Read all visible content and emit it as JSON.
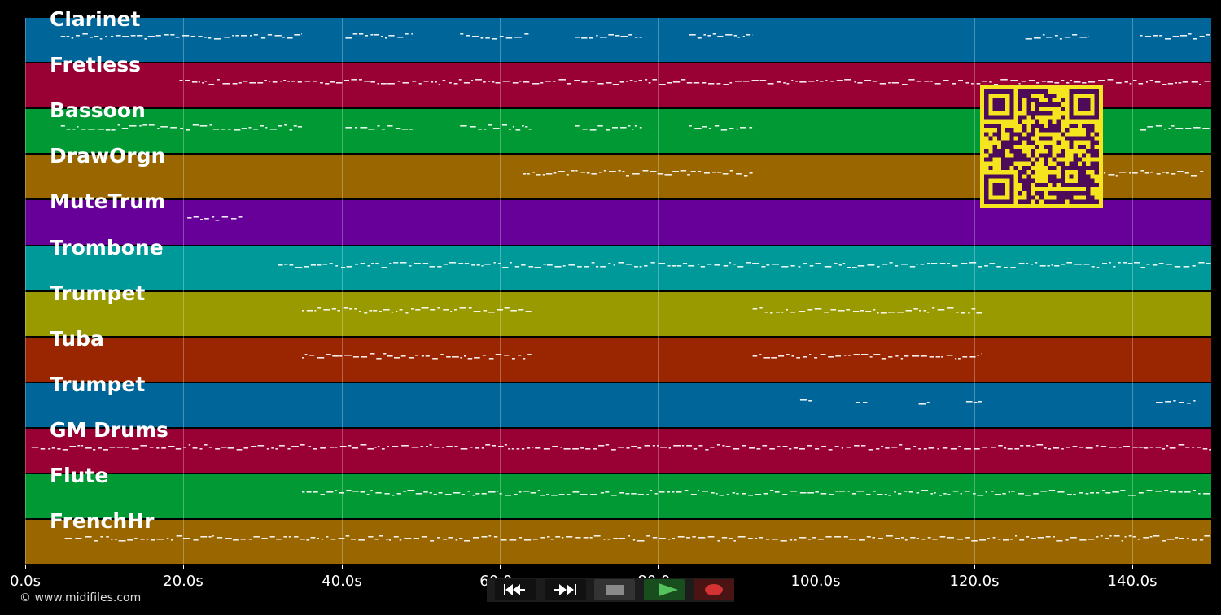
{
  "chart_data": {
    "type": "piano-roll",
    "xlim": [
      0,
      150
    ],
    "x_ticks": [
      {
        "value": 0,
        "label": "0.0s"
      },
      {
        "value": 20,
        "label": "20.0s"
      },
      {
        "value": 40,
        "label": "40.0s"
      },
      {
        "value": 60,
        "label": "60.0s"
      },
      {
        "value": 80,
        "label": "80.0s"
      },
      {
        "value": 100,
        "label": "100.0s"
      },
      {
        "value": 120,
        "label": "120.0s"
      },
      {
        "value": 140,
        "label": "140.0s"
      }
    ],
    "grid": true,
    "tracks": [
      {
        "name": "Clarinet",
        "color": "#006699",
        "note_spans": [
          [
            4.5,
            35
          ],
          [
            40.5,
            49
          ],
          [
            55,
            64
          ],
          [
            69.5,
            78
          ],
          [
            84,
            92
          ],
          [
            126.5,
            134.5
          ],
          [
            141,
            150
          ]
        ]
      },
      {
        "name": "Fretless",
        "color": "#990033",
        "note_spans": [
          [
            19.5,
            150
          ]
        ]
      },
      {
        "name": "Bassoon",
        "color": "#009933",
        "note_spans": [
          [
            4.5,
            35
          ],
          [
            40.5,
            49
          ],
          [
            55,
            64
          ],
          [
            69.5,
            78
          ],
          [
            84,
            92
          ],
          [
            141,
            150
          ]
        ]
      },
      {
        "name": "DrawOrgn",
        "color": "#996600",
        "note_spans": [
          [
            63,
            92
          ],
          [
            136,
            149
          ]
        ]
      },
      {
        "name": "MuteTrum",
        "color": "#660099",
        "note_spans": [
          [
            20.5,
            27.5
          ]
        ]
      },
      {
        "name": "Trombone",
        "color": "#009999",
        "note_spans": [
          [
            32,
            150
          ]
        ]
      },
      {
        "name": "Trumpet",
        "color": "#999900",
        "note_spans": [
          [
            35,
            64
          ],
          [
            92,
            121
          ]
        ]
      },
      {
        "name": "Tuba",
        "color": "#992600",
        "note_spans": [
          [
            35,
            64
          ],
          [
            92,
            121
          ]
        ]
      },
      {
        "name": "Trumpet",
        "color": "#006699",
        "note_spans": [
          [
            98,
            99.5
          ],
          [
            105,
            106.5
          ],
          [
            113,
            114.5
          ],
          [
            119,
            121
          ],
          [
            143,
            148
          ]
        ]
      },
      {
        "name": "GM Drums",
        "color": "#990033",
        "note_spans": [
          [
            0.8,
            150
          ]
        ]
      },
      {
        "name": "Flute",
        "color": "#009933",
        "note_spans": [
          [
            35,
            150
          ]
        ]
      },
      {
        "name": "FrenchHr",
        "color": "#996600",
        "note_spans": [
          [
            5,
            150
          ]
        ]
      }
    ]
  },
  "footer": {
    "copyright": "© www.midifiles.com"
  },
  "controls": {
    "rewind_icon": "rewind-icon",
    "fast_forward_icon": "fast-forward-icon",
    "stop_icon": "stop-icon",
    "play_icon": "play-icon",
    "record_icon": "record-icon"
  },
  "qr_colors": {
    "fg": "#4d0b5a",
    "bg": "#f5e51e"
  }
}
